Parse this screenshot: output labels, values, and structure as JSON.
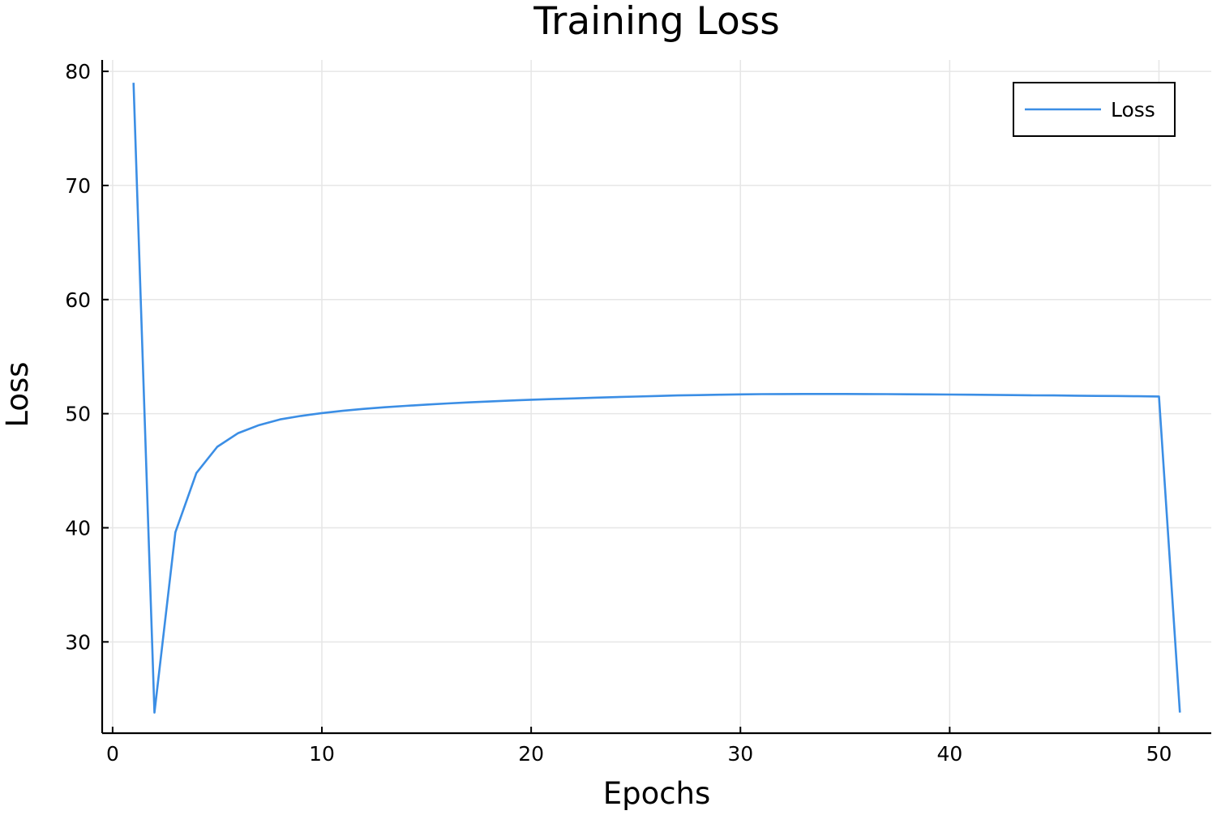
{
  "chart_data": {
    "type": "line",
    "title": "Training Loss",
    "xlabel": "Epochs",
    "ylabel": "Loss",
    "xlim": [
      -0.5,
      52.5
    ],
    "ylim": [
      22,
      81
    ],
    "xticks": [
      0,
      10,
      20,
      30,
      40,
      50
    ],
    "yticks": [
      30,
      40,
      50,
      60,
      70,
      80
    ],
    "grid": true,
    "legend": "top-right",
    "series": [
      {
        "name": "Loss",
        "color": "#3b8ee5",
        "x": [
          1,
          2,
          3,
          4,
          5,
          6,
          7,
          8,
          9,
          10,
          11,
          12,
          13,
          14,
          15,
          16,
          17,
          18,
          19,
          20,
          21,
          22,
          23,
          24,
          25,
          26,
          27,
          28,
          29,
          30,
          31,
          32,
          33,
          34,
          35,
          36,
          37,
          38,
          39,
          40,
          41,
          42,
          43,
          44,
          45,
          46,
          47,
          48,
          49,
          50,
          51
        ],
        "y": [
          79.0,
          23.8,
          39.6,
          44.8,
          47.1,
          48.3,
          49.0,
          49.5,
          49.8,
          50.05,
          50.25,
          50.42,
          50.56,
          50.68,
          50.8,
          50.9,
          50.99,
          51.07,
          51.15,
          51.22,
          51.28,
          51.34,
          51.4,
          51.45,
          51.5,
          51.55,
          51.6,
          51.63,
          51.66,
          51.69,
          51.71,
          51.72,
          51.73,
          51.73,
          51.73,
          51.72,
          51.71,
          51.7,
          51.69,
          51.68,
          51.66,
          51.65,
          51.63,
          51.61,
          51.6,
          51.58,
          51.56,
          51.55,
          51.53,
          51.51,
          23.8
        ]
      }
    ]
  }
}
